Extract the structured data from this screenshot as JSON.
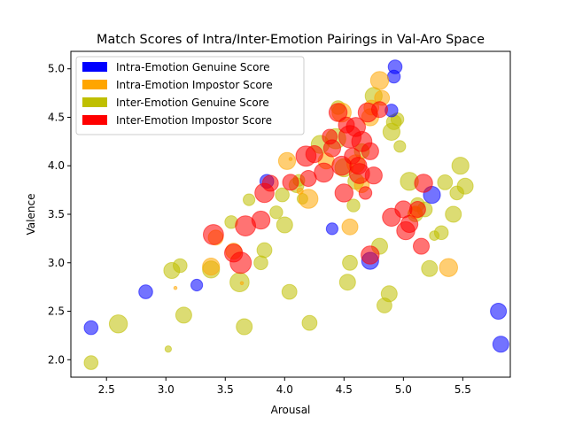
{
  "chart_data": {
    "type": "scatter",
    "title": "Match Scores of Intra/Inter-Emotion Pairings in Val-Aro Space",
    "xlabel": "Arousal",
    "ylabel": "Valence",
    "xlim": [
      2.2,
      5.9
    ],
    "ylim": [
      1.82,
      5.18
    ],
    "xticks": [
      "2.5",
      "3.0",
      "3.5",
      "4.0",
      "4.5",
      "5.0",
      "5.5"
    ],
    "yticks": [
      "2.0",
      "2.5",
      "3.0",
      "3.5",
      "4.0",
      "4.5",
      "5.0"
    ],
    "xtick_values": [
      2.5,
      3.0,
      3.5,
      4.0,
      4.5,
      5.0,
      5.5
    ],
    "ytick_values": [
      2.0,
      2.5,
      3.0,
      3.5,
      4.0,
      4.5,
      5.0
    ],
    "grid": false,
    "legend_position": "top-left",
    "alpha": 0.55,
    "series": [
      {
        "name": "Inter-Emotion Genuine Score",
        "color": "#bfbf00",
        "points": [
          [
            2.37,
            1.97,
            0.65
          ],
          [
            2.6,
            2.37,
            0.85
          ],
          [
            3.02,
            2.11,
            0.3
          ],
          [
            3.05,
            2.92,
            0.75
          ],
          [
            3.12,
            2.97,
            0.65
          ],
          [
            3.15,
            2.46,
            0.75
          ],
          [
            3.38,
            2.93,
            0.8
          ],
          [
            3.62,
            2.8,
            0.9
          ],
          [
            3.66,
            2.34,
            0.75
          ],
          [
            3.7,
            3.65,
            0.55
          ],
          [
            3.8,
            3.0,
            0.65
          ],
          [
            3.83,
            3.13,
            0.7
          ],
          [
            3.93,
            3.52,
            0.6
          ],
          [
            3.98,
            3.7,
            0.65
          ],
          [
            4.0,
            3.39,
            0.75
          ],
          [
            4.04,
            2.7,
            0.7
          ],
          [
            4.1,
            3.8,
            0.7
          ],
          [
            4.15,
            3.66,
            0.5
          ],
          [
            4.21,
            2.38,
            0.7
          ],
          [
            4.3,
            4.22,
            0.85
          ],
          [
            4.43,
            4.28,
            0.95
          ],
          [
            4.45,
            4.6,
            0.65
          ],
          [
            4.5,
            3.98,
            0.85
          ],
          [
            4.53,
            2.8,
            0.75
          ],
          [
            4.55,
            3.0,
            0.7
          ],
          [
            4.6,
            3.84,
            0.75
          ],
          [
            4.65,
            4.15,
            0.7
          ],
          [
            4.75,
            4.72,
            0.8
          ],
          [
            4.8,
            3.17,
            0.75
          ],
          [
            4.84,
            2.56,
            0.7
          ],
          [
            4.88,
            2.68,
            0.75
          ],
          [
            4.9,
            4.35,
            0.8
          ],
          [
            4.92,
            4.45,
            0.7
          ],
          [
            4.95,
            4.48,
            0.6
          ],
          [
            4.97,
            4.2,
            0.55
          ],
          [
            5.05,
            3.84,
            0.85
          ],
          [
            5.1,
            3.5,
            0.7
          ],
          [
            5.12,
            3.6,
            0.65
          ],
          [
            5.18,
            3.55,
            0.7
          ],
          [
            5.22,
            2.94,
            0.75
          ],
          [
            5.26,
            3.28,
            0.45
          ],
          [
            5.32,
            3.31,
            0.65
          ],
          [
            5.35,
            3.83,
            0.7
          ],
          [
            5.42,
            3.5,
            0.75
          ],
          [
            5.45,
            3.72,
            0.65
          ],
          [
            5.48,
            4.0,
            0.8
          ],
          [
            5.52,
            3.79,
            0.75
          ],
          [
            4.58,
            3.59,
            0.6
          ],
          [
            4.12,
            3.85,
            0.55
          ],
          [
            3.55,
            3.42,
            0.6
          ]
        ]
      },
      {
        "name": "Intra-Emotion Genuine Score",
        "color": "#0000ff",
        "points": [
          [
            2.37,
            2.33,
            0.65
          ],
          [
            2.83,
            2.7,
            0.65
          ],
          [
            3.26,
            2.77,
            0.55
          ],
          [
            3.85,
            3.84,
            0.65
          ],
          [
            4.4,
            3.35,
            0.55
          ],
          [
            4.72,
            3.02,
            0.8
          ],
          [
            4.9,
            4.57,
            0.6
          ],
          [
            4.93,
            5.02,
            0.65
          ],
          [
            5.24,
            3.7,
            0.8
          ],
          [
            5.8,
            2.5,
            0.75
          ],
          [
            5.82,
            2.16,
            0.75
          ],
          [
            4.92,
            4.92,
            0.6
          ]
        ]
      },
      {
        "name": "Intra-Emotion Impostor Score",
        "color": "#ffa500",
        "points": [
          [
            3.08,
            2.74,
            0.15
          ],
          [
            3.38,
            2.96,
            0.8
          ],
          [
            3.42,
            3.26,
            0.7
          ],
          [
            3.57,
            3.12,
            0.75
          ],
          [
            3.64,
            2.79,
            0.15
          ],
          [
            4.02,
            4.05,
            0.8
          ],
          [
            4.13,
            3.74,
            0.3
          ],
          [
            4.2,
            3.66,
            0.9
          ],
          [
            4.48,
            4.55,
            0.9
          ],
          [
            4.55,
            3.37,
            0.75
          ],
          [
            4.6,
            4.02,
            0.85
          ],
          [
            4.72,
            4.5,
            0.8
          ],
          [
            4.8,
            4.88,
            0.85
          ],
          [
            4.82,
            4.7,
            0.7
          ],
          [
            5.38,
            2.95,
            0.85
          ],
          [
            4.35,
            4.05,
            0.75
          ],
          [
            4.65,
            3.8,
            0.7
          ],
          [
            4.05,
            4.07,
            0.15
          ],
          [
            4.73,
            4.6,
            0.7
          ],
          [
            5.1,
            3.52,
            0.6
          ]
        ]
      },
      {
        "name": "Inter-Emotion Impostor Score",
        "color": "#ff0000",
        "points": [
          [
            3.4,
            3.29,
            0.95
          ],
          [
            3.57,
            3.1,
            0.85
          ],
          [
            3.63,
            3.0,
            1.0
          ],
          [
            3.67,
            3.38,
            0.95
          ],
          [
            3.8,
            3.44,
            0.85
          ],
          [
            3.83,
            3.72,
            0.9
          ],
          [
            3.88,
            3.82,
            0.75
          ],
          [
            4.05,
            3.83,
            0.75
          ],
          [
            4.18,
            4.1,
            0.95
          ],
          [
            4.2,
            3.87,
            0.75
          ],
          [
            4.25,
            4.12,
            0.8
          ],
          [
            4.33,
            3.93,
            0.9
          ],
          [
            4.4,
            4.18,
            0.8
          ],
          [
            4.45,
            4.55,
            0.85
          ],
          [
            4.48,
            4.0,
            0.9
          ],
          [
            4.5,
            3.72,
            0.85
          ],
          [
            4.55,
            4.3,
            1.05
          ],
          [
            4.6,
            4.4,
            0.9
          ],
          [
            4.63,
            3.92,
            0.95
          ],
          [
            4.65,
            4.25,
            0.95
          ],
          [
            4.7,
            4.55,
            0.9
          ],
          [
            4.72,
            4.15,
            0.8
          ],
          [
            4.75,
            3.9,
            0.8
          ],
          [
            4.8,
            4.58,
            0.75
          ],
          [
            4.72,
            3.08,
            0.85
          ],
          [
            4.9,
            3.47,
            0.85
          ],
          [
            5.0,
            3.55,
            0.8
          ],
          [
            5.02,
            3.33,
            0.85
          ],
          [
            5.05,
            3.4,
            0.8
          ],
          [
            5.12,
            3.55,
            0.75
          ],
          [
            5.15,
            3.17,
            0.75
          ],
          [
            5.17,
            3.82,
            0.85
          ],
          [
            4.38,
            4.3,
            0.7
          ],
          [
            4.57,
            4.1,
            0.75
          ],
          [
            4.62,
            4.0,
            0.8
          ],
          [
            4.68,
            3.72,
            0.6
          ],
          [
            4.52,
            4.42,
            0.75
          ]
        ]
      }
    ]
  },
  "legend": {
    "items": [
      {
        "label": "Intra-Emotion Genuine Score",
        "color": "#0000ff"
      },
      {
        "label": "Intra-Emotion Impostor Score",
        "color": "#ffa500"
      },
      {
        "label": "Inter-Emotion Genuine Score",
        "color": "#bfbf00"
      },
      {
        "label": "Inter-Emotion Impostor Score",
        "color": "#ff0000"
      }
    ]
  }
}
